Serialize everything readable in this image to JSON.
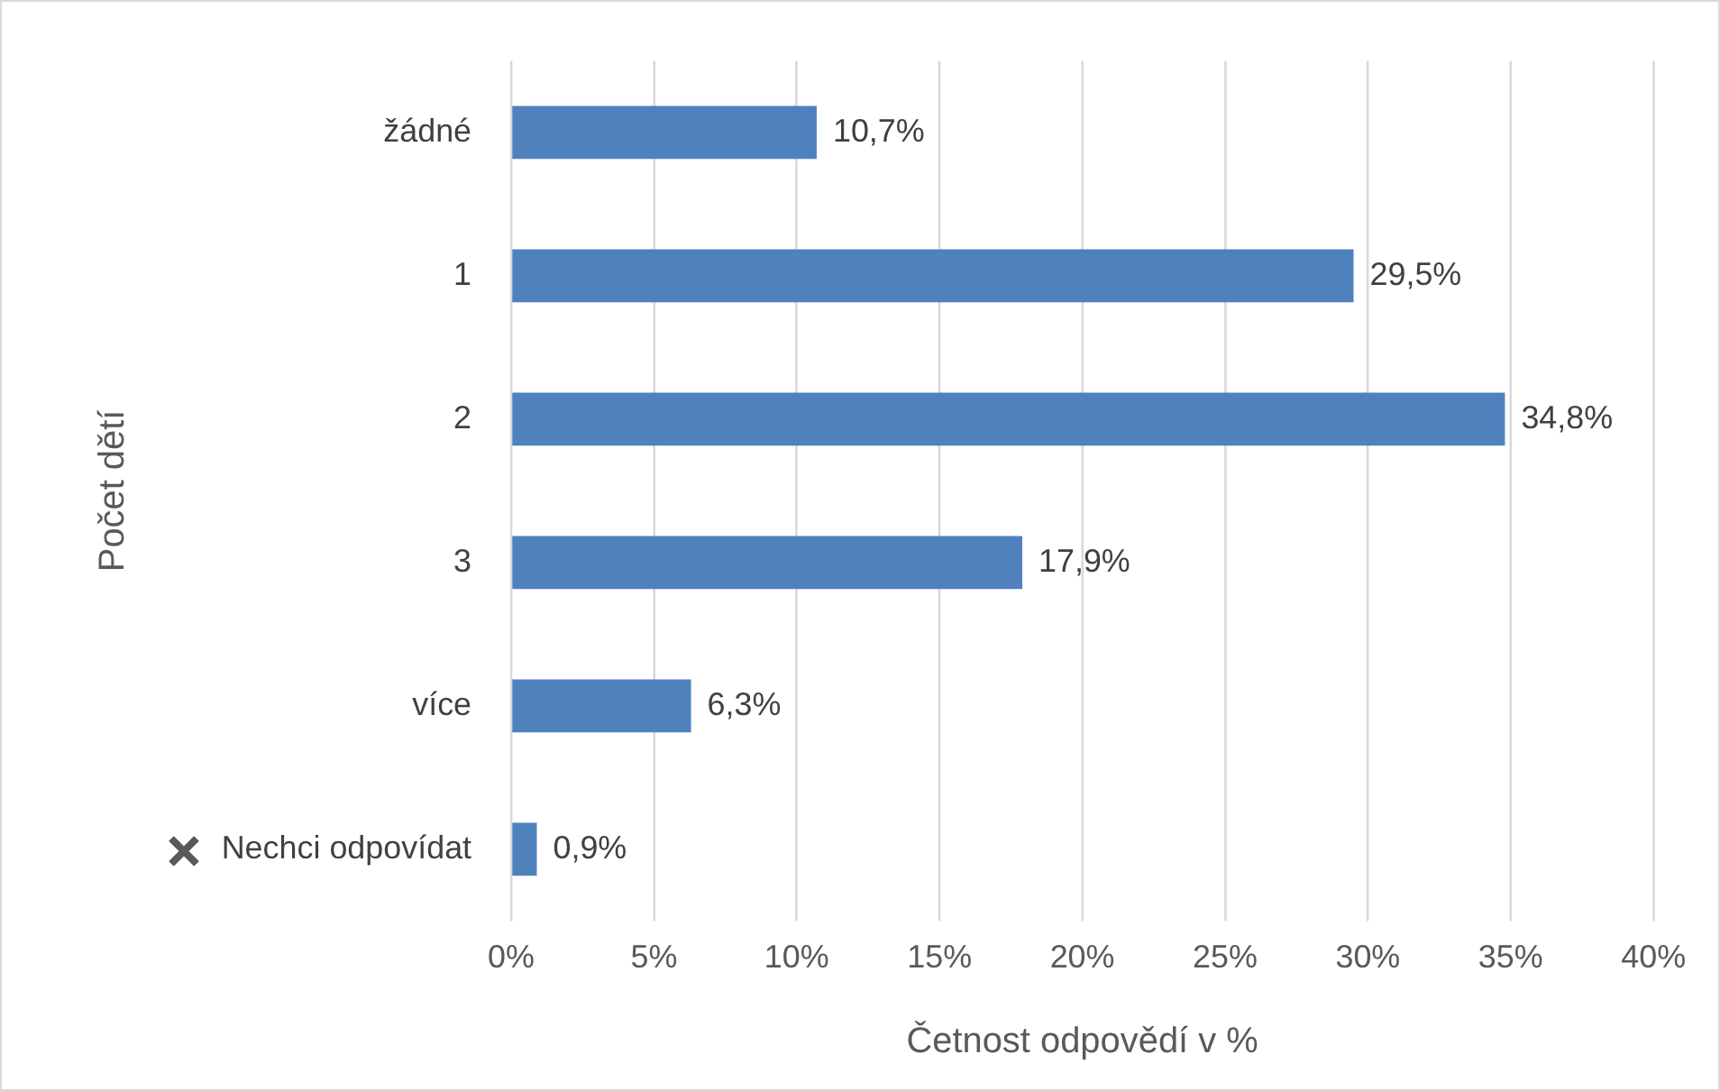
{
  "chart_data": {
    "type": "bar",
    "orientation": "horizontal",
    "xlabel": "Četnost odpovědí v %",
    "ylabel": "Počet dětí",
    "categories": [
      "žádné",
      "1",
      "2",
      "3",
      "více",
      "Nechci odpovídat"
    ],
    "values": [
      10.7,
      29.5,
      34.8,
      17.9,
      6.3,
      0.9
    ],
    "value_labels": [
      "10,7%",
      "29,5%",
      "34,8%",
      "17,9%",
      "6,3%",
      "0,9%"
    ],
    "color": "#4f81bd",
    "xlim": [
      0,
      40
    ],
    "xticks": [
      {
        "value": 0,
        "label": "0%"
      },
      {
        "value": 5,
        "label": "5%"
      },
      {
        "value": 10,
        "label": "10%"
      },
      {
        "value": 15,
        "label": "15%"
      },
      {
        "value": 20,
        "label": "20%"
      },
      {
        "value": 25,
        "label": "25%"
      },
      {
        "value": 30,
        "label": "30%"
      },
      {
        "value": 35,
        "label": "35%"
      },
      {
        "value": 40,
        "label": "40%"
      }
    ],
    "grid": "x",
    "legend": false
  }
}
